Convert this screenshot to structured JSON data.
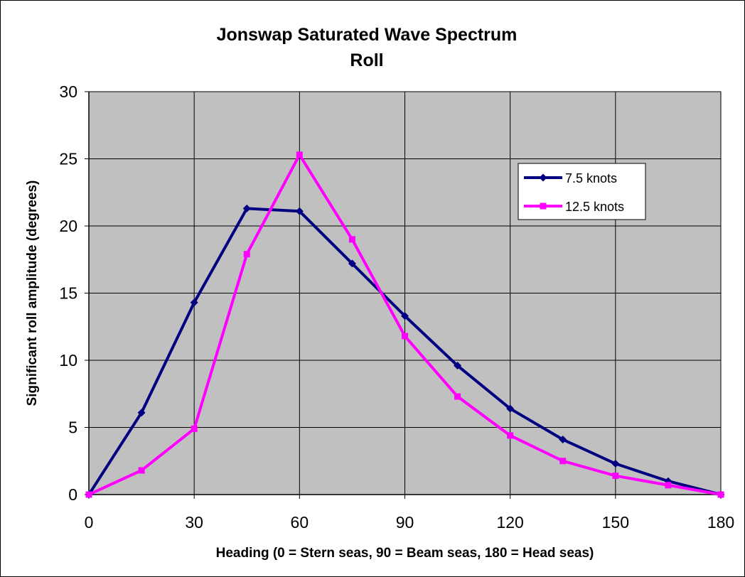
{
  "chart_data": {
    "type": "line",
    "title": "Jonswap Saturated Wave Spectrum",
    "subtitle": "Roll",
    "xlabel": "Heading (0 = Stern seas, 90 = Beam seas, 180 = Head seas)",
    "ylabel": "Significant roll amplitude (degrees)",
    "x": [
      0,
      15,
      30,
      45,
      60,
      75,
      90,
      105,
      120,
      135,
      150,
      165,
      180
    ],
    "xlim": [
      0,
      180
    ],
    "ylim": [
      0,
      30
    ],
    "xticks": [
      "0",
      "30",
      "60",
      "90",
      "120",
      "150",
      "180"
    ],
    "yticks": [
      "0",
      "5",
      "10",
      "15",
      "20",
      "25",
      "30"
    ],
    "grid": true,
    "plot_background": "#c0c0c0",
    "legend_position": "top-right",
    "series": [
      {
        "name": "7.5 knots",
        "color": "#000080",
        "marker": "diamond",
        "values": [
          0,
          6.1,
          14.3,
          21.3,
          21.1,
          17.2,
          13.3,
          9.6,
          6.4,
          4.1,
          2.3,
          1.0,
          0
        ]
      },
      {
        "name": "12.5 knots",
        "color": "#ff00ff",
        "marker": "square",
        "values": [
          0,
          1.8,
          4.9,
          17.9,
          25.3,
          19.0,
          11.8,
          7.3,
          4.4,
          2.5,
          1.4,
          0.7,
          0
        ]
      }
    ]
  }
}
